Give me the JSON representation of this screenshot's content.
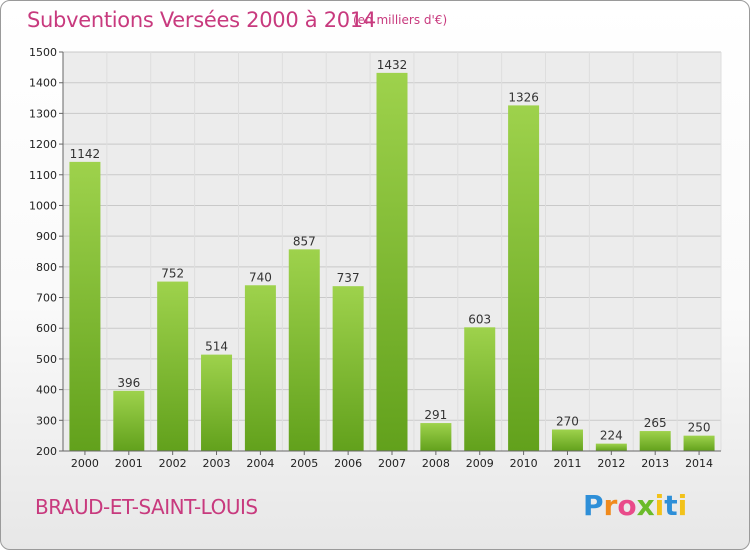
{
  "chart_data": {
    "type": "bar",
    "title": "Subventions Versées 2000 à 2014",
    "subtitle": "(en milliers d'€)",
    "categories": [
      "2000",
      "2001",
      "2002",
      "2003",
      "2004",
      "2005",
      "2006",
      "2007",
      "2008",
      "2009",
      "2010",
      "2011",
      "2012",
      "2013",
      "2014"
    ],
    "values": [
      1142,
      396,
      752,
      514,
      740,
      857,
      737,
      1432,
      291,
      603,
      1326,
      270,
      224,
      265,
      250
    ],
    "ylim": [
      200,
      1500
    ],
    "yticks": [
      200,
      300,
      400,
      500,
      600,
      700,
      800,
      900,
      1000,
      1100,
      1200,
      1300,
      1400,
      1500
    ],
    "grid": true,
    "bar_color": "#7ab82e"
  },
  "footer": {
    "place": "BRAUD-ET-SAINT-LOUIS",
    "logo_text": "Proxiti"
  }
}
